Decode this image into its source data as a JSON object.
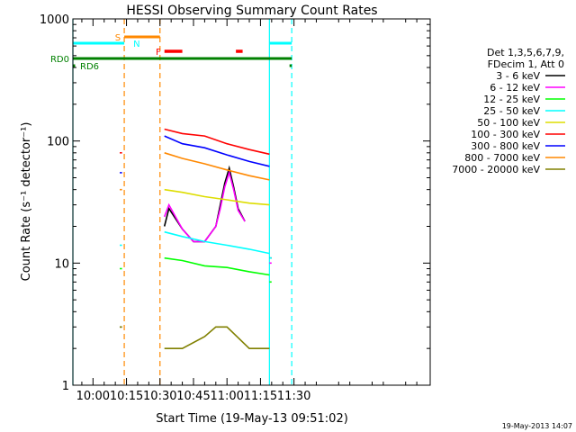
{
  "chart_data": {
    "type": "line",
    "title": "HESSI Observing Summary Count Rates",
    "xlabel": "Start Time (19-May-13 09:51:02)",
    "ylabel": "Count Rate (s⁻¹ detector⁻¹)",
    "yscale": "log",
    "ylim": [
      1,
      1000
    ],
    "xlim_minutes": [
      591,
      751
    ],
    "x_ticks": [
      {
        "label": "10:00",
        "min": 600
      },
      {
        "label": "10:15",
        "min": 615
      },
      {
        "label": "10:30",
        "min": 630
      },
      {
        "label": "10:45",
        "min": 645
      },
      {
        "label": "11:00",
        "min": 660
      },
      {
        "label": "11:15",
        "min": 675
      },
      {
        "label": "11:30",
        "min": 690
      }
    ],
    "y_tick_labels": [
      {
        "label": "1",
        "value": 1
      },
      {
        "label": "10",
        "value": 10
      },
      {
        "label": "100",
        "value": 100
      },
      {
        "label": "1000",
        "value": 1000
      }
    ],
    "legend_header": [
      "Det 1,3,5,6,7,9,",
      "FDecim 1, Att 0"
    ],
    "series": [
      {
        "name": "3 - 6 keV",
        "color": "#000000",
        "segments": [
          {
            "x": [
              612,
              613
            ],
            "y": [
              3,
              3
            ]
          },
          {
            "x": [
              632,
              634,
              640,
              645,
              650,
              655,
              657,
              659,
              661,
              663,
              665,
              668
            ],
            "y": [
              20,
              28,
              19,
              15,
              15,
              20,
              30,
              45,
              60,
              42,
              28,
              22
            ]
          },
          {
            "x": [
              679,
              680
            ],
            "y": [
              11,
              11
            ]
          }
        ]
      },
      {
        "name": "6 - 12 keV",
        "color": "#ff00ff",
        "segments": [
          {
            "x": [
              632,
              634,
              640,
              645,
              650,
              655,
              657,
              659,
              661,
              663,
              665,
              668
            ],
            "y": [
              24,
              30,
              19,
              15,
              15,
              20,
              28,
              42,
              55,
              40,
              27,
              22
            ]
          },
          {
            "x": [
              679,
              680
            ],
            "y": [
              10,
              10
            ]
          }
        ]
      },
      {
        "name": "12 - 25 keV",
        "color": "#00ff00",
        "segments": [
          {
            "x": [
              612,
              613
            ],
            "y": [
              9,
              9
            ]
          },
          {
            "x": [
              632,
              640,
              650,
              660,
              670,
              679
            ],
            "y": [
              11,
              10.5,
              9.5,
              9.2,
              8.5,
              8
            ]
          },
          {
            "x": [
              679,
              680
            ],
            "y": [
              7,
              7
            ]
          }
        ]
      },
      {
        "name": "25 - 50 keV",
        "color": "#00ffff",
        "segments": [
          {
            "x": [
              612,
              613
            ],
            "y": [
              14,
              14
            ]
          },
          {
            "x": [
              632,
              640,
              650,
              660,
              670,
              679
            ],
            "y": [
              18,
              16.5,
              15,
              14,
              13,
              12
            ]
          },
          {
            "x": [
              679,
              680
            ],
            "y": [
              11,
              11
            ]
          }
        ]
      },
      {
        "name": "50 - 100 keV",
        "color": "#dddd00",
        "segments": [
          {
            "x": [
              632,
              640,
              650,
              660,
              670,
              679
            ],
            "y": [
              40,
              38,
              35,
              33,
              31,
              30
            ]
          }
        ]
      },
      {
        "name": "100 - 300 keV",
        "color": "#ff0000",
        "segments": [
          {
            "x": [
              612,
              613
            ],
            "y": [
              80,
              80
            ]
          },
          {
            "x": [
              632,
              640,
              650,
              660,
              670,
              679
            ],
            "y": [
              125,
              115,
              110,
              95,
              85,
              78
            ]
          }
        ]
      },
      {
        "name": "300 - 800 keV",
        "color": "#0000ff",
        "segments": [
          {
            "x": [
              612,
              613
            ],
            "y": [
              55,
              55
            ]
          },
          {
            "x": [
              632,
              640,
              650,
              660,
              670,
              679
            ],
            "y": [
              110,
              95,
              88,
              77,
              68,
              62
            ]
          }
        ]
      },
      {
        "name": "800 - 7000 keV",
        "color": "#ff8800",
        "segments": [
          {
            "x": [
              612,
              613
            ],
            "y": [
              40,
              40
            ]
          },
          {
            "x": [
              632,
              640,
              650,
              660,
              670,
              679
            ],
            "y": [
              80,
              72,
              65,
              58,
              52,
              48
            ]
          }
        ]
      },
      {
        "name": "7000 - 20000 keV",
        "color": "#808000",
        "segments": [
          {
            "x": [
              612,
              613
            ],
            "y": [
              3,
              3
            ]
          },
          {
            "x": [
              632,
              640,
              650,
              655,
              660,
              670,
              679
            ],
            "y": [
              2,
              2,
              2.5,
              3,
              3,
              2,
              2
            ]
          }
        ]
      }
    ],
    "flags": [
      {
        "label": "S",
        "color": "#ff8800",
        "start": 614,
        "end": 630
      },
      {
        "label": "N",
        "color": "#00ffff",
        "start": 591,
        "end": 614
      },
      {
        "label": "N",
        "color": "#00ffff",
        "start": 679,
        "end": 689
      },
      {
        "label": "F",
        "color": "#ff0000",
        "start": 632,
        "end": 640
      },
      {
        "label": "F",
        "color": "#ff0000",
        "start": 664,
        "end": 667
      },
      {
        "label": "RD0",
        "color": "#008000",
        "start": 591,
        "end": 689
      },
      {
        "label": "RD6",
        "color": "#008000",
        "start": 591,
        "end": 592
      },
      {
        "label": "RD6",
        "color": "#008000",
        "start": 688,
        "end": 689
      }
    ],
    "vertical_markers": [
      {
        "min": 591,
        "color": "#00ffff",
        "style": "solid"
      },
      {
        "min": 614,
        "color": "#ff8800",
        "style": "dashed"
      },
      {
        "min": 630,
        "color": "#ff8800",
        "style": "dashed"
      },
      {
        "min": 679,
        "color": "#00ffff",
        "style": "solid"
      },
      {
        "min": 689,
        "color": "#00ffff",
        "style": "dashed"
      }
    ],
    "footer_date": "19-May-2013 14:07"
  }
}
